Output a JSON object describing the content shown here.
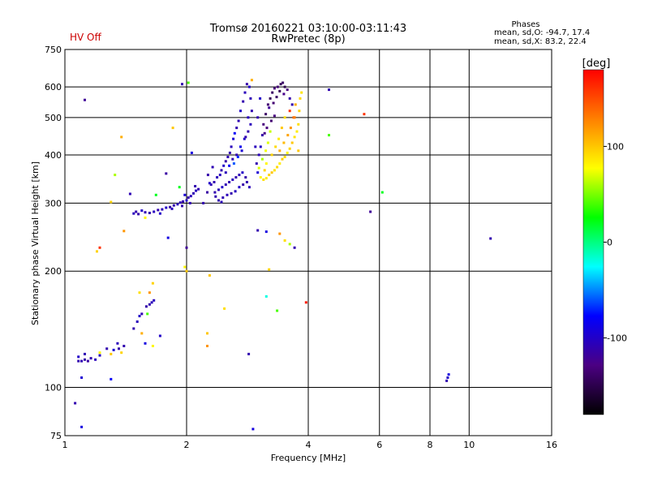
{
  "chart_data": {
    "type": "scatter",
    "hv_status": "HV Off",
    "title": "Tromsø 20160221 03:10:00-03:11:43",
    "subtitle": "RwPretec (8p)",
    "stats_title": "Phases",
    "stats_line1": "mean, sd,O: -94.7, 17.4",
    "stats_line2": "mean, sd,X:  83.2, 22.4",
    "xlabel": "Frequency [MHz]",
    "ylabel": "Stationary phase Virtual Height [km]",
    "x_scale": "log",
    "y_scale": "log",
    "xlim": [
      1,
      16
    ],
    "ylim": [
      75,
      750
    ],
    "grid": true,
    "x_ticks": [
      1,
      2,
      4,
      6,
      8,
      10,
      16
    ],
    "x_tick_labels": [
      "1",
      "2",
      "4",
      "6",
      "8",
      "10",
      "16"
    ],
    "y_ticks": [
      75,
      100,
      200,
      300,
      400,
      500,
      600,
      750
    ],
    "y_tick_labels": [
      "75",
      "100",
      "200",
      "300",
      "400",
      "500",
      "600",
      "750"
    ],
    "colorbar": {
      "label": "[deg]",
      "range": [
        -180,
        180
      ],
      "ticks": [
        100,
        0,
        -100
      ],
      "tick_labels": [
        "100",
        "0",
        "-100"
      ]
    },
    "color_stops": [
      "#000000",
      "#4b0082",
      "#0000ff",
      "#00ffff",
      "#00ff00",
      "#ffff00",
      "#ff8000",
      "#ff0000"
    ],
    "points": [
      {
        "x": 1.08,
        "y": 117,
        "phase": -110
      },
      {
        "x": 1.1,
        "y": 117,
        "phase": -108
      },
      {
        "x": 1.12,
        "y": 118,
        "phase": -112
      },
      {
        "x": 1.14,
        "y": 117,
        "phase": -115
      },
      {
        "x": 1.16,
        "y": 119,
        "phase": -110
      },
      {
        "x": 1.19,
        "y": 118,
        "phase": -105
      },
      {
        "x": 1.22,
        "y": 121,
        "phase": -100
      },
      {
        "x": 1.27,
        "y": 126,
        "phase": -110
      },
      {
        "x": 1.32,
        "y": 125,
        "phase": -95
      },
      {
        "x": 1.36,
        "y": 126,
        "phase": -112
      },
      {
        "x": 1.3,
        "y": 122,
        "phase": 100
      },
      {
        "x": 1.38,
        "y": 123,
        "phase": 95
      },
      {
        "x": 1.22,
        "y": 123,
        "phase": 80
      },
      {
        "x": 1.48,
        "y": 142,
        "phase": -110
      },
      {
        "x": 1.51,
        "y": 148,
        "phase": -105
      },
      {
        "x": 1.53,
        "y": 153,
        "phase": -100
      },
      {
        "x": 1.55,
        "y": 155,
        "phase": -108
      },
      {
        "x": 1.59,
        "y": 162,
        "phase": -112
      },
      {
        "x": 1.62,
        "y": 164,
        "phase": -110
      },
      {
        "x": 1.64,
        "y": 166,
        "phase": -105
      },
      {
        "x": 1.66,
        "y": 168,
        "phase": -104
      },
      {
        "x": 1.53,
        "y": 176,
        "phase": 90
      },
      {
        "x": 1.6,
        "y": 155,
        "phase": 40
      },
      {
        "x": 1.55,
        "y": 138,
        "phase": 110
      },
      {
        "x": 1.58,
        "y": 130,
        "phase": -90
      },
      {
        "x": 1.2,
        "y": 225,
        "phase": 95
      },
      {
        "x": 1.22,
        "y": 230,
        "phase": 160
      },
      {
        "x": 1.3,
        "y": 302,
        "phase": 95
      },
      {
        "x": 1.33,
        "y": 355,
        "phase": 60
      },
      {
        "x": 1.4,
        "y": 254,
        "phase": 120
      },
      {
        "x": 1.45,
        "y": 317,
        "phase": -108
      },
      {
        "x": 1.58,
        "y": 275,
        "phase": 80
      },
      {
        "x": 1.8,
        "y": 244,
        "phase": -90
      },
      {
        "x": 1.68,
        "y": 315,
        "phase": 20
      },
      {
        "x": 1.12,
        "y": 555,
        "phase": -120
      },
      {
        "x": 1.1,
        "y": 79,
        "phase": -90
      },
      {
        "x": 1.06,
        "y": 91,
        "phase": -110
      },
      {
        "x": 1.1,
        "y": 106,
        "phase": -95
      },
      {
        "x": 1.3,
        "y": 105,
        "phase": -80
      },
      {
        "x": 1.38,
        "y": 445,
        "phase": 110
      },
      {
        "x": 1.48,
        "y": 282,
        "phase": -105
      },
      {
        "x": 1.5,
        "y": 285,
        "phase": -110
      },
      {
        "x": 1.52,
        "y": 281,
        "phase": -112
      },
      {
        "x": 1.55,
        "y": 287,
        "phase": -100
      },
      {
        "x": 1.58,
        "y": 284,
        "phase": -108
      },
      {
        "x": 1.62,
        "y": 283,
        "phase": -110
      },
      {
        "x": 1.66,
        "y": 285,
        "phase": -104
      },
      {
        "x": 1.7,
        "y": 288,
        "phase": -110
      },
      {
        "x": 1.74,
        "y": 289,
        "phase": -106
      },
      {
        "x": 1.78,
        "y": 292,
        "phase": -100
      },
      {
        "x": 1.82,
        "y": 293,
        "phase": -112
      },
      {
        "x": 1.86,
        "y": 296,
        "phase": -110
      },
      {
        "x": 1.9,
        "y": 298,
        "phase": -105
      },
      {
        "x": 1.93,
        "y": 301,
        "phase": -108
      },
      {
        "x": 1.96,
        "y": 303,
        "phase": -110
      },
      {
        "x": 2.0,
        "y": 305,
        "phase": -100
      },
      {
        "x": 2.02,
        "y": 310,
        "phase": -112
      },
      {
        "x": 2.05,
        "y": 313,
        "phase": -106
      },
      {
        "x": 2.08,
        "y": 318,
        "phase": -108
      },
      {
        "x": 2.11,
        "y": 323,
        "phase": -104
      },
      {
        "x": 2.14,
        "y": 326,
        "phase": -110
      },
      {
        "x": 1.72,
        "y": 282,
        "phase": -100
      },
      {
        "x": 1.84,
        "y": 290,
        "phase": -105
      },
      {
        "x": 1.95,
        "y": 295,
        "phase": -110
      },
      {
        "x": 2.04,
        "y": 300,
        "phase": -108
      },
      {
        "x": 1.98,
        "y": 315,
        "phase": -95
      },
      {
        "x": 2.1,
        "y": 332,
        "phase": -110
      },
      {
        "x": 1.78,
        "y": 358,
        "phase": -115
      },
      {
        "x": 1.92,
        "y": 330,
        "phase": 20
      },
      {
        "x": 2.06,
        "y": 405,
        "phase": -90
      },
      {
        "x": 2.2,
        "y": 300,
        "phase": -110
      },
      {
        "x": 2.25,
        "y": 320,
        "phase": -115
      },
      {
        "x": 2.3,
        "y": 335,
        "phase": -108
      },
      {
        "x": 2.34,
        "y": 340,
        "phase": -110
      },
      {
        "x": 2.38,
        "y": 350,
        "phase": -106
      },
      {
        "x": 2.42,
        "y": 355,
        "phase": -104
      },
      {
        "x": 2.44,
        "y": 365,
        "phase": -110
      },
      {
        "x": 2.47,
        "y": 375,
        "phase": -100
      },
      {
        "x": 2.5,
        "y": 385,
        "phase": -112
      },
      {
        "x": 2.53,
        "y": 395,
        "phase": -108
      },
      {
        "x": 2.56,
        "y": 405,
        "phase": -110
      },
      {
        "x": 2.58,
        "y": 420,
        "phase": -105
      },
      {
        "x": 2.61,
        "y": 440,
        "phase": -95
      },
      {
        "x": 2.63,
        "y": 455,
        "phase": -80
      },
      {
        "x": 2.66,
        "y": 470,
        "phase": -110
      },
      {
        "x": 2.69,
        "y": 490,
        "phase": -108
      },
      {
        "x": 2.72,
        "y": 520,
        "phase": -100
      },
      {
        "x": 2.76,
        "y": 550,
        "phase": -110
      },
      {
        "x": 2.79,
        "y": 580,
        "phase": -105
      },
      {
        "x": 2.82,
        "y": 610,
        "phase": -112
      },
      {
        "x": 2.35,
        "y": 320,
        "phase": -110
      },
      {
        "x": 2.4,
        "y": 325,
        "phase": -106
      },
      {
        "x": 2.45,
        "y": 330,
        "phase": -100
      },
      {
        "x": 2.5,
        "y": 335,
        "phase": -108
      },
      {
        "x": 2.55,
        "y": 340,
        "phase": -110
      },
      {
        "x": 2.6,
        "y": 345,
        "phase": -104
      },
      {
        "x": 2.65,
        "y": 350,
        "phase": -110
      },
      {
        "x": 2.7,
        "y": 355,
        "phase": -106
      },
      {
        "x": 2.75,
        "y": 360,
        "phase": -100
      },
      {
        "x": 2.8,
        "y": 350,
        "phase": -112
      },
      {
        "x": 2.4,
        "y": 305,
        "phase": -110
      },
      {
        "x": 2.46,
        "y": 310,
        "phase": -108
      },
      {
        "x": 2.52,
        "y": 315,
        "phase": -106
      },
      {
        "x": 2.58,
        "y": 318,
        "phase": -110
      },
      {
        "x": 2.64,
        "y": 322,
        "phase": -104
      },
      {
        "x": 2.7,
        "y": 330,
        "phase": -100
      },
      {
        "x": 2.76,
        "y": 335,
        "phase": -112
      },
      {
        "x": 2.82,
        "y": 340,
        "phase": -110
      },
      {
        "x": 2.86,
        "y": 330,
        "phase": -106
      },
      {
        "x": 2.5,
        "y": 360,
        "phase": -105
      },
      {
        "x": 2.55,
        "y": 375,
        "phase": -80
      },
      {
        "x": 2.6,
        "y": 390,
        "phase": -108
      },
      {
        "x": 2.66,
        "y": 400,
        "phase": -110
      },
      {
        "x": 2.72,
        "y": 420,
        "phase": -85
      },
      {
        "x": 2.78,
        "y": 440,
        "phase": -100
      },
      {
        "x": 2.84,
        "y": 460,
        "phase": -110
      },
      {
        "x": 2.88,
        "y": 480,
        "phase": -105
      },
      {
        "x": 2.9,
        "y": 520,
        "phase": -110
      },
      {
        "x": 2.88,
        "y": 560,
        "phase": -108
      },
      {
        "x": 2.86,
        "y": 600,
        "phase": -100
      },
      {
        "x": 2.62,
        "y": 380,
        "phase": -60
      },
      {
        "x": 2.68,
        "y": 395,
        "phase": -70
      },
      {
        "x": 2.74,
        "y": 410,
        "phase": -95
      },
      {
        "x": 2.8,
        "y": 445,
        "phase": -110
      },
      {
        "x": 2.84,
        "y": 500,
        "phase": -104
      },
      {
        "x": 2.26,
        "y": 355,
        "phase": -112
      },
      {
        "x": 2.32,
        "y": 372,
        "phase": -108
      },
      {
        "x": 2.28,
        "y": 338,
        "phase": -100
      },
      {
        "x": 2.36,
        "y": 312,
        "phase": -110
      },
      {
        "x": 2.44,
        "y": 302,
        "phase": -106
      },
      {
        "x": 3.05,
        "y": 350,
        "phase": 80
      },
      {
        "x": 3.1,
        "y": 345,
        "phase": 90
      },
      {
        "x": 3.15,
        "y": 348,
        "phase": 85
      },
      {
        "x": 3.2,
        "y": 355,
        "phase": 95
      },
      {
        "x": 3.25,
        "y": 360,
        "phase": 100
      },
      {
        "x": 3.3,
        "y": 365,
        "phase": 88
      },
      {
        "x": 3.35,
        "y": 372,
        "phase": 92
      },
      {
        "x": 3.4,
        "y": 380,
        "phase": 85
      },
      {
        "x": 3.45,
        "y": 390,
        "phase": 98
      },
      {
        "x": 3.5,
        "y": 395,
        "phase": 90
      },
      {
        "x": 3.55,
        "y": 405,
        "phase": 82
      },
      {
        "x": 3.6,
        "y": 415,
        "phase": 95
      },
      {
        "x": 3.65,
        "y": 430,
        "phase": 100
      },
      {
        "x": 3.7,
        "y": 445,
        "phase": 88
      },
      {
        "x": 3.75,
        "y": 460,
        "phase": 85
      },
      {
        "x": 3.78,
        "y": 480,
        "phase": 90
      },
      {
        "x": 3.8,
        "y": 520,
        "phase": 95
      },
      {
        "x": 3.82,
        "y": 560,
        "phase": 92
      },
      {
        "x": 3.85,
        "y": 580,
        "phase": 88
      },
      {
        "x": 3.02,
        "y": 370,
        "phase": 70
      },
      {
        "x": 3.08,
        "y": 390,
        "phase": 60
      },
      {
        "x": 3.14,
        "y": 410,
        "phase": 75
      },
      {
        "x": 3.18,
        "y": 430,
        "phase": 70
      },
      {
        "x": 3.22,
        "y": 460,
        "phase": 65
      },
      {
        "x": 3.4,
        "y": 410,
        "phase": 110
      },
      {
        "x": 3.48,
        "y": 430,
        "phase": 105
      },
      {
        "x": 3.56,
        "y": 450,
        "phase": 115
      },
      {
        "x": 3.62,
        "y": 470,
        "phase": 120
      },
      {
        "x": 3.68,
        "y": 500,
        "phase": 140
      },
      {
        "x": 3.72,
        "y": 540,
        "phase": 110
      },
      {
        "x": 3.25,
        "y": 400,
        "phase": 95
      },
      {
        "x": 3.32,
        "y": 420,
        "phase": 92
      },
      {
        "x": 3.38,
        "y": 440,
        "phase": 85
      },
      {
        "x": 3.44,
        "y": 470,
        "phase": 100
      },
      {
        "x": 3.5,
        "y": 500,
        "phase": 90
      },
      {
        "x": 3.15,
        "y": 380,
        "phase": 80
      },
      {
        "x": 3.12,
        "y": 365,
        "phase": 95
      },
      {
        "x": 3.0,
        "y": 360,
        "phase": -95
      },
      {
        "x": 2.98,
        "y": 380,
        "phase": -110
      },
      {
        "x": 3.02,
        "y": 400,
        "phase": -105
      },
      {
        "x": 3.05,
        "y": 420,
        "phase": -100
      },
      {
        "x": 3.08,
        "y": 450,
        "phase": -112
      },
      {
        "x": 3.1,
        "y": 480,
        "phase": -130
      },
      {
        "x": 3.14,
        "y": 510,
        "phase": -140
      },
      {
        "x": 3.18,
        "y": 540,
        "phase": -135
      },
      {
        "x": 3.22,
        "y": 560,
        "phase": -145
      },
      {
        "x": 3.26,
        "y": 580,
        "phase": -140
      },
      {
        "x": 3.3,
        "y": 595,
        "phase": -130
      },
      {
        "x": 3.36,
        "y": 600,
        "phase": -135
      },
      {
        "x": 3.42,
        "y": 610,
        "phase": -145
      },
      {
        "x": 3.46,
        "y": 615,
        "phase": -140
      },
      {
        "x": 3.5,
        "y": 600,
        "phase": -150
      },
      {
        "x": 3.55,
        "y": 590,
        "phase": -130
      },
      {
        "x": 3.2,
        "y": 530,
        "phase": -120
      },
      {
        "x": 3.28,
        "y": 545,
        "phase": -135
      },
      {
        "x": 3.34,
        "y": 565,
        "phase": -140
      },
      {
        "x": 3.4,
        "y": 585,
        "phase": -145
      },
      {
        "x": 3.48,
        "y": 575,
        "phase": -125
      },
      {
        "x": 3.6,
        "y": 560,
        "phase": -112
      },
      {
        "x": 3.65,
        "y": 540,
        "phase": -110
      },
      {
        "x": 3.12,
        "y": 455,
        "phase": -125
      },
      {
        "x": 3.16,
        "y": 470,
        "phase": -130
      },
      {
        "x": 3.24,
        "y": 490,
        "phase": -135
      },
      {
        "x": 3.3,
        "y": 505,
        "phase": -128
      },
      {
        "x": 3.0,
        "y": 500,
        "phase": -110
      },
      {
        "x": 3.04,
        "y": 560,
        "phase": -100
      },
      {
        "x": 2.96,
        "y": 420,
        "phase": -105
      },
      {
        "x": 3.6,
        "y": 520,
        "phase": 160
      },
      {
        "x": 3.7,
        "y": 500,
        "phase": 130
      },
      {
        "x": 3.78,
        "y": 410,
        "phase": 100
      },
      {
        "x": 1.85,
        "y": 470,
        "phase": 100
      },
      {
        "x": 1.95,
        "y": 610,
        "phase": -110
      },
      {
        "x": 2.02,
        "y": 615,
        "phase": 40
      },
      {
        "x": 2.9,
        "y": 625,
        "phase": 110
      },
      {
        "x": 4.5,
        "y": 590,
        "phase": -110
      },
      {
        "x": 5.5,
        "y": 510,
        "phase": 160
      },
      {
        "x": 4.5,
        "y": 450,
        "phase": 40
      },
      {
        "x": 5.7,
        "y": 285,
        "phase": -120
      },
      {
        "x": 6.1,
        "y": 320,
        "phase": 20
      },
      {
        "x": 3.0,
        "y": 255,
        "phase": -110
      },
      {
        "x": 3.15,
        "y": 253,
        "phase": -90
      },
      {
        "x": 3.4,
        "y": 250,
        "phase": 120
      },
      {
        "x": 3.5,
        "y": 240,
        "phase": 90
      },
      {
        "x": 3.6,
        "y": 235,
        "phase": 60
      },
      {
        "x": 3.7,
        "y": 230,
        "phase": -110
      },
      {
        "x": 2.0,
        "y": 230,
        "phase": -120
      },
      {
        "x": 1.98,
        "y": 205,
        "phase": 80
      },
      {
        "x": 2.28,
        "y": 195,
        "phase": 100
      },
      {
        "x": 3.2,
        "y": 202,
        "phase": 95
      },
      {
        "x": 3.15,
        "y": 172,
        "phase": -20
      },
      {
        "x": 3.35,
        "y": 158,
        "phase": 40
      },
      {
        "x": 3.95,
        "y": 166,
        "phase": 170
      },
      {
        "x": 2.48,
        "y": 160,
        "phase": 90
      },
      {
        "x": 2.25,
        "y": 138,
        "phase": 100
      },
      {
        "x": 2.25,
        "y": 128,
        "phase": 120
      },
      {
        "x": 2.85,
        "y": 122,
        "phase": -110
      },
      {
        "x": 2.92,
        "y": 78,
        "phase": -90
      },
      {
        "x": 1.65,
        "y": 128,
        "phase": 80
      },
      {
        "x": 1.72,
        "y": 136,
        "phase": -100
      },
      {
        "x": 2.0,
        "y": 200,
        "phase": 100
      },
      {
        "x": 8.8,
        "y": 104,
        "phase": -110
      },
      {
        "x": 8.85,
        "y": 106,
        "phase": -100
      },
      {
        "x": 8.9,
        "y": 108,
        "phase": -90
      },
      {
        "x": 11.3,
        "y": 243,
        "phase": -110
      },
      {
        "x": 1.08,
        "y": 120,
        "phase": -100
      },
      {
        "x": 1.12,
        "y": 122,
        "phase": -108
      },
      {
        "x": 1.35,
        "y": 130,
        "phase": -105
      },
      {
        "x": 1.4,
        "y": 128,
        "phase": -110
      },
      {
        "x": 1.62,
        "y": 176,
        "phase": 120
      },
      {
        "x": 1.65,
        "y": 186,
        "phase": 95
      }
    ]
  }
}
